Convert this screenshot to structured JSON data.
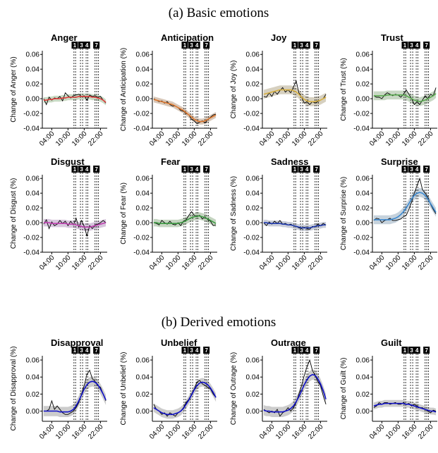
{
  "sections": [
    {
      "title": "(a) Basic emotions"
    },
    {
      "title": "(b) Derived emotions"
    }
  ],
  "chart_data": [
    {
      "type": "line",
      "title": "Anger",
      "ylabel": "Change of Anger (%)",
      "x": [
        1,
        2,
        3,
        4,
        5,
        6,
        7,
        8,
        9,
        10,
        11,
        12,
        13,
        14,
        15,
        16,
        17,
        18,
        19,
        20,
        21,
        22,
        23,
        24
      ],
      "raw": [
        0.0,
        -0.008,
        0.002,
        -0.002,
        0.001,
        0.0,
        0.003,
        -0.003,
        0.008,
        0.004,
        0.001,
        0.004,
        0.005,
        0.006,
        0.003,
        0.004,
        -0.002,
        0.005,
        0.003,
        0.004,
        0.002,
        0.003,
        -0.002,
        -0.006
      ],
      "fit": [
        -0.002,
        -0.002,
        -0.001,
        -0.001,
        0.0,
        0.0,
        0.0,
        0.001,
        0.001,
        0.002,
        0.002,
        0.002,
        0.002,
        0.003,
        0.003,
        0.003,
        0.003,
        0.003,
        0.002,
        0.002,
        0.001,
        0.0,
        -0.002,
        -0.005
      ],
      "ci": 0.004,
      "color": "#e03c3c",
      "band_color": "#c9d9c3",
      "ylim": [
        -0.04,
        0.065
      ],
      "yticks": [
        -0.04,
        -0.02,
        0.0,
        0.02,
        0.04,
        0.06
      ],
      "xticks": [
        "04:00",
        "10:00",
        "16:00",
        "22:00"
      ]
    },
    {
      "type": "line",
      "title": "Anticipation",
      "ylabel": "Change of Anticipation (%)",
      "x": [
        1,
        2,
        3,
        4,
        5,
        6,
        7,
        8,
        9,
        10,
        11,
        12,
        13,
        14,
        15,
        16,
        17,
        18,
        19,
        20,
        21,
        22,
        23,
        24
      ],
      "raw": [
        0.0,
        -0.002,
        -0.004,
        -0.003,
        -0.006,
        -0.004,
        -0.008,
        -0.01,
        -0.01,
        -0.012,
        -0.016,
        -0.017,
        -0.02,
        -0.022,
        -0.028,
        -0.03,
        -0.034,
        -0.032,
        -0.03,
        -0.033,
        -0.028,
        -0.025,
        -0.022,
        -0.021
      ],
      "fit": [
        -0.001,
        -0.002,
        -0.003,
        -0.004,
        -0.005,
        -0.006,
        -0.007,
        -0.008,
        -0.01,
        -0.012,
        -0.014,
        -0.016,
        -0.019,
        -0.022,
        -0.025,
        -0.028,
        -0.03,
        -0.031,
        -0.031,
        -0.03,
        -0.028,
        -0.026,
        -0.024,
        -0.022
      ],
      "ci": 0.004,
      "color": "#e07a30",
      "band_color": "#d8c7b8",
      "ylim": [
        -0.04,
        0.065
      ],
      "yticks": [
        -0.04,
        -0.02,
        0.0,
        0.02,
        0.04,
        0.06
      ],
      "xticks": [
        "04:00",
        "10:00",
        "16:00",
        "22:00"
      ]
    },
    {
      "type": "line",
      "title": "Joy",
      "ylabel": "Change of Joy (%)",
      "x": [
        1,
        2,
        3,
        4,
        5,
        6,
        7,
        8,
        9,
        10,
        11,
        12,
        13,
        14,
        15,
        16,
        17,
        18,
        19,
        20,
        21,
        22,
        23,
        24
      ],
      "raw": [
        0.003,
        0.002,
        0.008,
        0.003,
        0.01,
        0.006,
        0.011,
        0.015,
        0.009,
        0.012,
        0.008,
        0.016,
        0.024,
        0.008,
        0.002,
        -0.006,
        -0.004,
        -0.008,
        -0.004,
        -0.006,
        -0.004,
        -0.002,
        0.0,
        0.006
      ],
      "fit": [
        0.006,
        0.007,
        0.008,
        0.009,
        0.01,
        0.011,
        0.012,
        0.012,
        0.012,
        0.012,
        0.012,
        0.011,
        0.009,
        0.006,
        0.002,
        -0.001,
        -0.003,
        -0.004,
        -0.004,
        -0.004,
        -0.003,
        -0.002,
        0.0,
        0.002
      ],
      "ci": 0.006,
      "color": "#d8b040",
      "band_color": "#d6d0c0",
      "ylim": [
        -0.04,
        0.065
      ],
      "yticks": [
        -0.04,
        -0.02,
        0.0,
        0.02,
        0.04,
        0.06
      ],
      "xticks": [
        "04:00",
        "10:00",
        "16:00",
        "22:00"
      ]
    },
    {
      "type": "line",
      "title": "Trust",
      "ylabel": "Change of Trust (%)",
      "x": [
        1,
        2,
        3,
        4,
        5,
        6,
        7,
        8,
        9,
        10,
        11,
        12,
        13,
        14,
        15,
        16,
        17,
        18,
        19,
        20,
        21,
        22,
        23,
        24
      ],
      "raw": [
        0.004,
        0.002,
        0.002,
        0.0,
        0.005,
        0.008,
        0.006,
        0.004,
        0.006,
        0.005,
        0.002,
        0.006,
        0.012,
        0.006,
        0.0,
        -0.008,
        -0.004,
        -0.008,
        -0.002,
        0.004,
        0.0,
        0.006,
        0.004,
        0.015
      ],
      "fit": [
        0.004,
        0.004,
        0.004,
        0.004,
        0.004,
        0.005,
        0.005,
        0.005,
        0.005,
        0.005,
        0.005,
        0.005,
        0.004,
        0.002,
        0.0,
        -0.002,
        -0.003,
        -0.004,
        -0.003,
        -0.002,
        0.0,
        0.002,
        0.004,
        0.007
      ],
      "ci": 0.006,
      "color": "#5aaa50",
      "band_color": "#c8d8c4",
      "ylim": [
        -0.04,
        0.065
      ],
      "yticks": [
        -0.04,
        -0.02,
        0.0,
        0.02,
        0.04,
        0.06
      ],
      "xticks": [
        "04:00",
        "10:00",
        "16:00",
        "22:00"
      ]
    },
    {
      "type": "line",
      "title": "Disgust",
      "ylabel": "Change of Disgust (%)",
      "x": [
        1,
        2,
        3,
        4,
        5,
        6,
        7,
        8,
        9,
        10,
        11,
        12,
        13,
        14,
        15,
        16,
        17,
        18,
        19,
        20,
        21,
        22,
        23,
        24
      ],
      "raw": [
        -0.002,
        0.004,
        -0.008,
        0.001,
        -0.004,
        -0.002,
        0.003,
        -0.001,
        0.002,
        -0.004,
        0.002,
        -0.003,
        0.006,
        -0.006,
        0.003,
        -0.005,
        -0.018,
        -0.004,
        -0.008,
        -0.003,
        -0.002,
        0.0,
        0.003,
        0.0
      ],
      "fit": [
        0.0,
        0.0,
        0.0,
        -0.001,
        -0.001,
        -0.001,
        -0.001,
        -0.001,
        -0.001,
        -0.002,
        -0.002,
        -0.002,
        -0.003,
        -0.004,
        -0.005,
        -0.006,
        -0.006,
        -0.006,
        -0.005,
        -0.004,
        -0.003,
        -0.002,
        -0.001,
        0.0
      ],
      "ci": 0.005,
      "color": "#c040b0",
      "band_color": "#d6c6dc",
      "ylim": [
        -0.04,
        0.065
      ],
      "yticks": [
        -0.04,
        -0.02,
        0.0,
        0.02,
        0.04,
        0.06
      ],
      "xticks": [
        "04:00",
        "10:00",
        "16:00",
        "22:00"
      ]
    },
    {
      "type": "line",
      "title": "Fear",
      "ylabel": "Change of Fear (%)",
      "x": [
        1,
        2,
        3,
        4,
        5,
        6,
        7,
        8,
        9,
        10,
        11,
        12,
        13,
        14,
        15,
        16,
        17,
        18,
        19,
        20,
        21,
        22,
        23,
        24
      ],
      "raw": [
        0.0,
        -0.001,
        -0.003,
        0.003,
        0.0,
        -0.002,
        0.002,
        -0.002,
        -0.003,
        0.0,
        -0.004,
        0.002,
        0.004,
        0.01,
        0.015,
        0.01,
        0.008,
        0.01,
        0.005,
        0.008,
        0.004,
        0.002,
        -0.004,
        -0.003
      ],
      "fit": [
        0.0,
        0.0,
        -0.001,
        -0.001,
        -0.001,
        -0.001,
        -0.001,
        -0.001,
        -0.001,
        -0.001,
        0.0,
        0.001,
        0.003,
        0.005,
        0.007,
        0.008,
        0.009,
        0.009,
        0.008,
        0.007,
        0.005,
        0.003,
        0.001,
        -0.001
      ],
      "ci": 0.005,
      "color": "#3a9a40",
      "band_color": "#c4d4c0",
      "ylim": [
        -0.04,
        0.065
      ],
      "yticks": [
        -0.04,
        -0.02,
        0.0,
        0.02,
        0.04,
        0.06
      ],
      "xticks": [
        "04:00",
        "10:00",
        "16:00",
        "22:00"
      ]
    },
    {
      "type": "line",
      "title": "Sadness",
      "ylabel": "Change of Sadness (%)",
      "x": [
        1,
        2,
        3,
        4,
        5,
        6,
        7,
        8,
        9,
        10,
        11,
        12,
        13,
        14,
        15,
        16,
        17,
        18,
        19,
        20,
        21,
        22,
        23,
        24
      ],
      "raw": [
        0.0,
        -0.004,
        0.001,
        -0.002,
        0.002,
        -0.001,
        0.003,
        -0.002,
        -0.001,
        -0.003,
        -0.002,
        -0.004,
        -0.005,
        -0.007,
        -0.008,
        -0.006,
        -0.008,
        -0.009,
        -0.005,
        -0.006,
        -0.002,
        -0.004,
        -0.001,
        -0.003
      ],
      "fit": [
        0.0,
        0.0,
        -0.001,
        -0.001,
        -0.001,
        -0.001,
        -0.001,
        -0.002,
        -0.002,
        -0.003,
        -0.003,
        -0.004,
        -0.005,
        -0.006,
        -0.007,
        -0.007,
        -0.007,
        -0.007,
        -0.006,
        -0.005,
        -0.004,
        -0.004,
        -0.003,
        -0.003
      ],
      "ci": 0.004,
      "color": "#1f3ab0",
      "band_color": "#c8ccd8",
      "ylim": [
        -0.04,
        0.065
      ],
      "yticks": [
        -0.04,
        -0.02,
        0.0,
        0.02,
        0.04,
        0.06
      ],
      "xticks": [
        "04:00",
        "10:00",
        "16:00",
        "22:00"
      ]
    },
    {
      "type": "line",
      "title": "Surprise",
      "ylabel": "Change of Surprise (%)",
      "x": [
        1,
        2,
        3,
        4,
        5,
        6,
        7,
        8,
        9,
        10,
        11,
        12,
        13,
        14,
        15,
        16,
        17,
        18,
        19,
        20,
        21,
        22,
        23,
        24
      ],
      "raw": [
        0.003,
        0.006,
        0.005,
        0.0,
        0.003,
        0.004,
        0.006,
        0.003,
        0.003,
        0.004,
        0.005,
        0.008,
        0.01,
        0.018,
        0.028,
        0.04,
        0.05,
        0.06,
        0.045,
        0.04,
        0.035,
        0.025,
        0.018,
        0.012
      ],
      "fit": [
        0.004,
        0.004,
        0.004,
        0.004,
        0.004,
        0.004,
        0.004,
        0.005,
        0.006,
        0.008,
        0.011,
        0.015,
        0.02,
        0.026,
        0.032,
        0.037,
        0.04,
        0.041,
        0.04,
        0.037,
        0.032,
        0.026,
        0.02,
        0.014
      ],
      "ci": 0.006,
      "color": "#3a88d0",
      "band_color": "#c6d2dc",
      "ylim": [
        -0.04,
        0.065
      ],
      "yticks": [
        -0.04,
        -0.02,
        0.0,
        0.02,
        0.04,
        0.06
      ],
      "xticks": [
        "04:00",
        "10:00",
        "16:00",
        "22:00"
      ]
    },
    {
      "type": "line",
      "title": "Disapproval",
      "ylabel": "Change of Disapproval (%)",
      "x": [
        1,
        2,
        3,
        4,
        5,
        6,
        7,
        8,
        9,
        10,
        11,
        12,
        13,
        14,
        15,
        16,
        17,
        18,
        19,
        20,
        21,
        22,
        23,
        24
      ],
      "raw": [
        0.0,
        0.0,
        0.002,
        0.012,
        0.002,
        0.006,
        0.002,
        -0.002,
        -0.004,
        -0.004,
        -0.002,
        0.0,
        0.004,
        0.01,
        0.02,
        0.03,
        0.043,
        0.048,
        0.038,
        0.035,
        0.03,
        0.028,
        0.02,
        0.012
      ],
      "fit": [
        0.0,
        0.0,
        0.0,
        0.0,
        0.0,
        0.0,
        -0.001,
        -0.001,
        -0.001,
        -0.001,
        0.0,
        0.002,
        0.006,
        0.012,
        0.019,
        0.026,
        0.031,
        0.034,
        0.035,
        0.034,
        0.031,
        0.026,
        0.02,
        0.013
      ],
      "ci": 0.006,
      "color": "#1010c8",
      "band_color": "#cccccc",
      "ylim": [
        -0.012,
        0.065
      ],
      "yticks": [
        0.0,
        0.02,
        0.04,
        0.06
      ],
      "xticks": [
        "04:00",
        "10:00",
        "16:00",
        "22:00"
      ]
    },
    {
      "type": "line",
      "title": "Unbelief",
      "ylabel": "Change of Unbelief (%)",
      "x": [
        1,
        2,
        3,
        4,
        5,
        6,
        7,
        8,
        9,
        10,
        11,
        12,
        13,
        14,
        15,
        16,
        17,
        18,
        19,
        20,
        21,
        22,
        23,
        24
      ],
      "raw": [
        0.008,
        0.002,
        0.0,
        -0.004,
        -0.002,
        -0.006,
        -0.002,
        -0.004,
        -0.006,
        -0.002,
        0.0,
        0.004,
        0.01,
        0.014,
        0.02,
        0.026,
        0.034,
        0.036,
        0.032,
        0.03,
        0.028,
        0.026,
        0.02,
        0.016
      ],
      "fit": [
        0.004,
        0.002,
        0.0,
        -0.002,
        -0.003,
        -0.004,
        -0.004,
        -0.004,
        -0.003,
        -0.002,
        0.0,
        0.003,
        0.008,
        0.013,
        0.019,
        0.025,
        0.03,
        0.033,
        0.034,
        0.033,
        0.031,
        0.027,
        0.022,
        0.016
      ],
      "ci": 0.005,
      "color": "#1010c8",
      "band_color": "#cccccc",
      "ylim": [
        -0.012,
        0.065
      ],
      "yticks": [
        0.0,
        0.02,
        0.04,
        0.06
      ],
      "xticks": [
        "04:00",
        "10:00",
        "16:00",
        "22:00"
      ]
    },
    {
      "type": "line",
      "title": "Outrage",
      "ylabel": "Change of Outrage (%)",
      "x": [
        1,
        2,
        3,
        4,
        5,
        6,
        7,
        8,
        9,
        10,
        11,
        12,
        13,
        14,
        15,
        16,
        17,
        18,
        19,
        20,
        21,
        22,
        23,
        24
      ],
      "raw": [
        0.002,
        0.0,
        -0.002,
        0.0,
        -0.002,
        0.002,
        -0.006,
        -0.002,
        0.0,
        0.004,
        0.0,
        0.004,
        0.01,
        0.02,
        0.03,
        0.042,
        0.052,
        0.06,
        0.048,
        0.042,
        0.035,
        0.03,
        0.018,
        0.008
      ],
      "fit": [
        0.001,
        0.0,
        0.0,
        -0.001,
        -0.001,
        -0.001,
        -0.001,
        -0.001,
        0.0,
        0.001,
        0.003,
        0.006,
        0.011,
        0.017,
        0.024,
        0.031,
        0.037,
        0.041,
        0.043,
        0.042,
        0.038,
        0.032,
        0.024,
        0.014
      ],
      "ci": 0.006,
      "color": "#1010c8",
      "band_color": "#cccccc",
      "ylim": [
        -0.012,
        0.065
      ],
      "yticks": [
        0.0,
        0.02,
        0.04,
        0.06
      ],
      "xticks": [
        "04:00",
        "10:00",
        "16:00",
        "22:00"
      ]
    },
    {
      "type": "line",
      "title": "Guilt",
      "ylabel": "Change of Guilt (%)",
      "x": [
        1,
        2,
        3,
        4,
        5,
        6,
        7,
        8,
        9,
        10,
        11,
        12,
        13,
        14,
        15,
        16,
        17,
        18,
        19,
        20,
        21,
        22,
        23,
        24
      ],
      "raw": [
        0.004,
        0.006,
        0.01,
        0.008,
        0.01,
        0.01,
        0.008,
        0.009,
        0.01,
        0.008,
        0.008,
        0.01,
        0.008,
        0.009,
        0.006,
        0.008,
        0.006,
        0.004,
        0.004,
        0.002,
        0.0,
        -0.002,
        0.001,
        0.0
      ],
      "fit": [
        0.006,
        0.007,
        0.008,
        0.008,
        0.009,
        0.009,
        0.009,
        0.009,
        0.009,
        0.009,
        0.009,
        0.009,
        0.008,
        0.008,
        0.007,
        0.006,
        0.005,
        0.004,
        0.003,
        0.002,
        0.001,
        0.0,
        0.0,
        -0.001
      ],
      "ci": 0.004,
      "color": "#1010c8",
      "band_color": "#cccccc",
      "ylim": [
        -0.012,
        0.065
      ],
      "yticks": [
        0.0,
        0.02,
        0.04,
        0.06
      ],
      "xticks": [
        "04:00",
        "10:00",
        "16:00",
        "22:00"
      ]
    }
  ],
  "event_markers": {
    "labels": [
      "1",
      "3",
      "4",
      "7"
    ],
    "x": [
      12.5,
      15.0,
      17.0,
      20.5
    ],
    "dashed_lines_x": [
      12.2,
      12.8,
      14.6,
      15.4,
      16.7,
      17.3,
      20.0,
      20.6,
      21.2
    ]
  }
}
